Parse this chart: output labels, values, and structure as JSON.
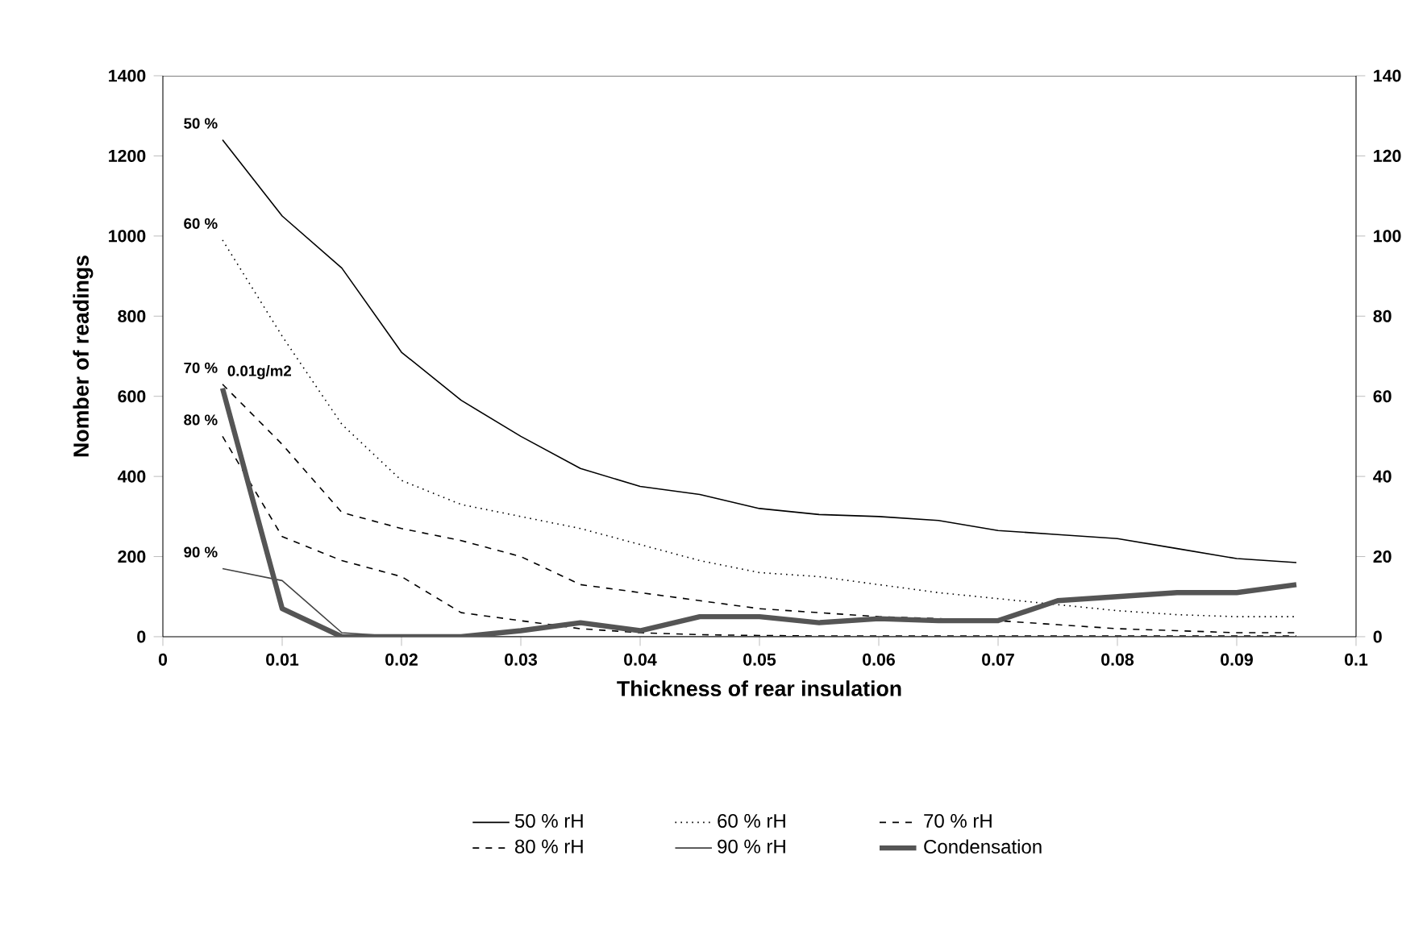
{
  "chart_data": {
    "type": "line",
    "xlabel": "Thickness of rear insulation",
    "ylabel": "Nomber of readings",
    "x": [
      0.005,
      0.01,
      0.015,
      0.02,
      0.025,
      0.03,
      0.035,
      0.04,
      0.045,
      0.05,
      0.055,
      0.06,
      0.065,
      0.07,
      0.075,
      0.08,
      0.085,
      0.09,
      0.095
    ],
    "series": [
      {
        "name": "50 % rH",
        "color": "#000000",
        "line_style": "solid",
        "values": [
          1240,
          1050,
          920,
          710,
          590,
          500,
          420,
          375,
          355,
          320,
          305,
          300,
          290,
          265,
          255,
          245,
          220,
          195,
          185
        ]
      },
      {
        "name": "60 % rH",
        "color": "#000000",
        "line_style": "dotted",
        "values": [
          990,
          750,
          530,
          390,
          330,
          300,
          270,
          230,
          190,
          160,
          150,
          130,
          110,
          95,
          80,
          65,
          55,
          50,
          50
        ]
      },
      {
        "name": "70 % rH",
        "color": "#000000",
        "line_style": "dashed",
        "values": [
          630,
          480,
          310,
          270,
          240,
          200,
          130,
          110,
          90,
          70,
          60,
          50,
          45,
          40,
          30,
          20,
          15,
          10,
          10
        ]
      },
      {
        "name": "80 % rH",
        "color": "#000000",
        "line_style": "dashed",
        "values": [
          500,
          250,
          190,
          150,
          60,
          40,
          20,
          10,
          5,
          3,
          2,
          2,
          2,
          2,
          2,
          2,
          2,
          2,
          2
        ]
      },
      {
        "name": "90 % rH",
        "color": "#444444",
        "line_style": "solid",
        "values": [
          170,
          140,
          10,
          0,
          0,
          0,
          0,
          0,
          0,
          0,
          0,
          0,
          0,
          0,
          0,
          0,
          0,
          0,
          0
        ]
      },
      {
        "name": "Condensation",
        "color": "#555555",
        "line_style": "solid",
        "axis": "y2",
        "values": [
          62,
          7,
          0,
          0,
          0,
          1.5,
          3.5,
          1.5,
          5,
          5,
          3.5,
          4.5,
          4,
          4,
          9,
          10,
          11,
          11,
          13
        ]
      }
    ],
    "xlim": [
      0,
      0.1
    ],
    "xticks": [
      0,
      0.01,
      0.02,
      0.03,
      0.04,
      0.05,
      0.06,
      0.07,
      0.08,
      0.09,
      0.1
    ],
    "ylim": [
      0,
      1400
    ],
    "yticks": [
      0,
      200,
      400,
      600,
      800,
      1000,
      1200,
      1400
    ],
    "y2lim": [
      0,
      140
    ],
    "y2ticks": [
      0,
      20,
      40,
      60,
      80,
      100,
      120,
      140
    ],
    "annotations": [
      "50 %",
      "60 %",
      "70 %",
      "80 %",
      "90 %",
      "0.01g/m2"
    ],
    "grid": false,
    "legend": "bottom",
    "marker": "none"
  }
}
